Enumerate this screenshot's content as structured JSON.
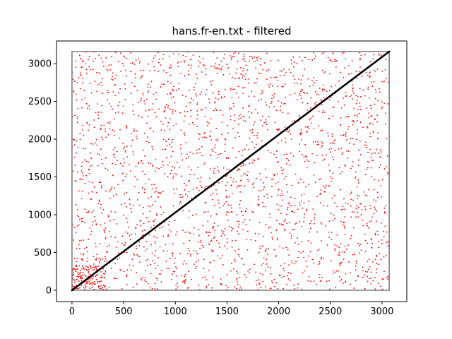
{
  "chart_data": {
    "type": "scatter",
    "title": "hans.fr-en.txt - filtered",
    "xlabel": "",
    "ylabel": "",
    "xlim": [
      -150,
      3240
    ],
    "ylim": [
      -150,
      3300
    ],
    "x_ticks": [
      0,
      500,
      1000,
      1500,
      2000,
      2500,
      3000
    ],
    "y_ticks": [
      0,
      500,
      1000,
      1500,
      2000,
      2500,
      3000
    ],
    "grid": false,
    "legend": "none",
    "bounding_box": {
      "x0": 0,
      "y0": 0,
      "x1": 3070,
      "y1": 3160,
      "color": "#808080"
    },
    "series": [
      {
        "kind": "noise",
        "color": "#ff0000",
        "marker": "dot",
        "point_count": 2500,
        "x_range": [
          0,
          3070
        ],
        "y_range": [
          0,
          3160
        ]
      },
      {
        "kind": "diagonal",
        "color": "#000000",
        "marker": "dot",
        "start": [
          0,
          0
        ],
        "end": [
          3070,
          3160
        ]
      }
    ]
  }
}
